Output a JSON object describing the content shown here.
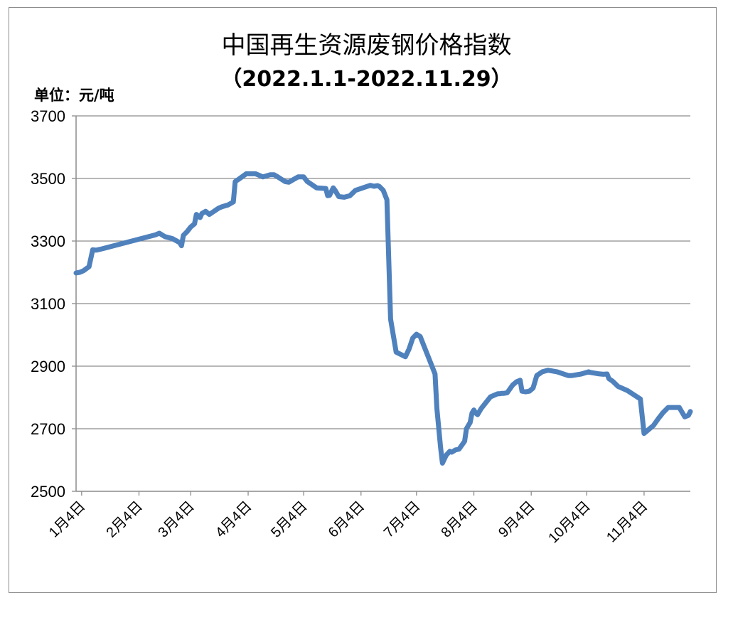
{
  "chart_data": {
    "type": "line",
    "title": "中国再生资源废钢价格指数",
    "subtitle": "（2022.1.1-2022.11.29）",
    "ylabel": "单位：元/吨",
    "ylim": [
      2500,
      3700
    ],
    "yticks": [
      "2500",
      "2700",
      "2900",
      "3100",
      "3300",
      "3500",
      "3700"
    ],
    "xlim": [
      0,
      332
    ],
    "xticks": [
      {
        "label": "1月4日",
        "x": 3
      },
      {
        "label": "2月4日",
        "x": 34
      },
      {
        "label": "3月4日",
        "x": 62
      },
      {
        "label": "4月4日",
        "x": 93
      },
      {
        "label": "5月4日",
        "x": 123
      },
      {
        "label": "6月4日",
        "x": 154
      },
      {
        "label": "7月4日",
        "x": 184
      },
      {
        "label": "8月4日",
        "x": 215
      },
      {
        "label": "9月4日",
        "x": 246
      },
      {
        "label": "10月4日",
        "x": 276
      },
      {
        "label": "11月4日",
        "x": 307
      }
    ],
    "grid": true,
    "color": "#4f81bd",
    "series": [
      {
        "x": [
          0,
          2,
          4,
          7,
          9,
          11,
          14,
          43,
          45,
          48,
          52,
          56,
          57,
          58,
          60,
          62,
          64,
          65,
          67,
          68,
          70,
          72,
          74,
          77,
          79,
          82,
          85,
          86,
          88,
          92,
          97,
          101,
          105,
          106,
          107,
          109,
          113,
          115,
          117,
          120,
          123,
          125,
          130,
          135,
          136,
          137,
          139,
          140,
          142,
          145,
          148,
          151,
          155,
          159,
          161,
          163,
          164,
          166,
          168,
          170,
          173,
          178,
          180,
          182,
          184,
          186,
          192,
          194,
          195,
          197,
          198,
          200,
          202,
          203,
          205,
          207,
          210,
          211,
          213,
          214,
          215,
          216,
          217,
          219,
          224,
          228,
          229,
          230,
          231,
          233,
          236,
          238,
          240,
          241,
          243,
          245,
          247,
          249,
          252,
          255,
          260,
          262,
          266,
          268,
          269,
          270,
          273,
          276,
          277,
          278,
          280,
          282,
          285,
          287,
          288,
          290,
          293,
          298,
          305,
          307,
          312,
          315,
          316,
          317,
          320,
          321,
          323,
          326,
          329,
          331,
          332
        ],
        "y": [
          3198,
          3200,
          3205,
          3218,
          3272,
          3271,
          3275,
          3320,
          3325,
          3314,
          3308,
          3295,
          3285,
          3318,
          3330,
          3345,
          3355,
          3385,
          3375,
          3388,
          3395,
          3385,
          3393,
          3405,
          3410,
          3415,
          3425,
          3490,
          3498,
          3515,
          3515,
          3505,
          3512,
          3512,
          3512,
          3505,
          3490,
          3488,
          3495,
          3505,
          3505,
          3490,
          3470,
          3468,
          3445,
          3446,
          3470,
          3462,
          3442,
          3440,
          3445,
          3462,
          3470,
          3478,
          3475,
          3477,
          3474,
          3462,
          3432,
          3050,
          2945,
          2930,
          2955,
          2990,
          3002,
          2995,
          2905,
          2875,
          2765,
          2640,
          2590,
          2615,
          2628,
          2625,
          2632,
          2635,
          2660,
          2700,
          2720,
          2750,
          2760,
          2750,
          2745,
          2765,
          2802,
          2812,
          2812,
          2813,
          2813,
          2815,
          2840,
          2850,
          2855,
          2820,
          2818,
          2820,
          2830,
          2870,
          2882,
          2887,
          2882,
          2878,
          2870,
          2870,
          2871,
          2872,
          2875,
          2880,
          2882,
          2880,
          2878,
          2876,
          2874,
          2875,
          2860,
          2852,
          2835,
          2822,
          2795,
          2685,
          2710,
          2735,
          2742,
          2750,
          2768,
          2768,
          2768,
          2768,
          2738,
          2743,
          2755
        ]
      }
    ]
  }
}
